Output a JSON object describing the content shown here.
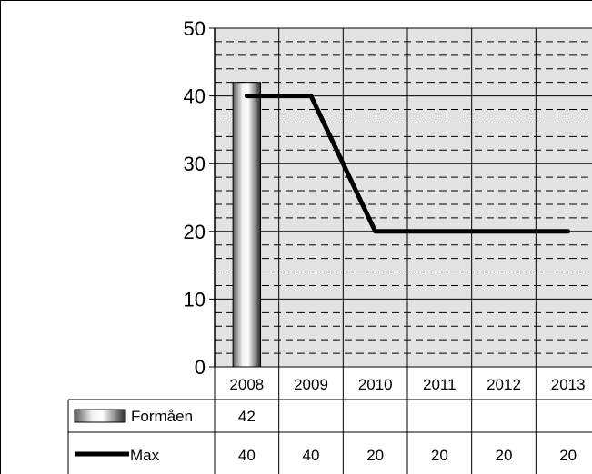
{
  "chart_data": {
    "type": "bar",
    "categories": [
      "2008",
      "2009",
      "2010",
      "2011",
      "2012",
      "2013"
    ],
    "ylim": [
      0,
      50
    ],
    "yticks": [
      0,
      10,
      20,
      30,
      40,
      50
    ],
    "grid": true,
    "legend": "data-table",
    "series": [
      {
        "name": "Formåen",
        "type": "bar",
        "values": [
          42,
          null,
          null,
          null,
          null,
          null
        ]
      },
      {
        "name": "Max",
        "type": "line",
        "values": [
          40,
          40,
          20,
          20,
          20,
          20
        ]
      }
    ],
    "colors": {
      "plot_bg": "#e3e3e3",
      "line": "#000000",
      "border": "#000000"
    }
  }
}
